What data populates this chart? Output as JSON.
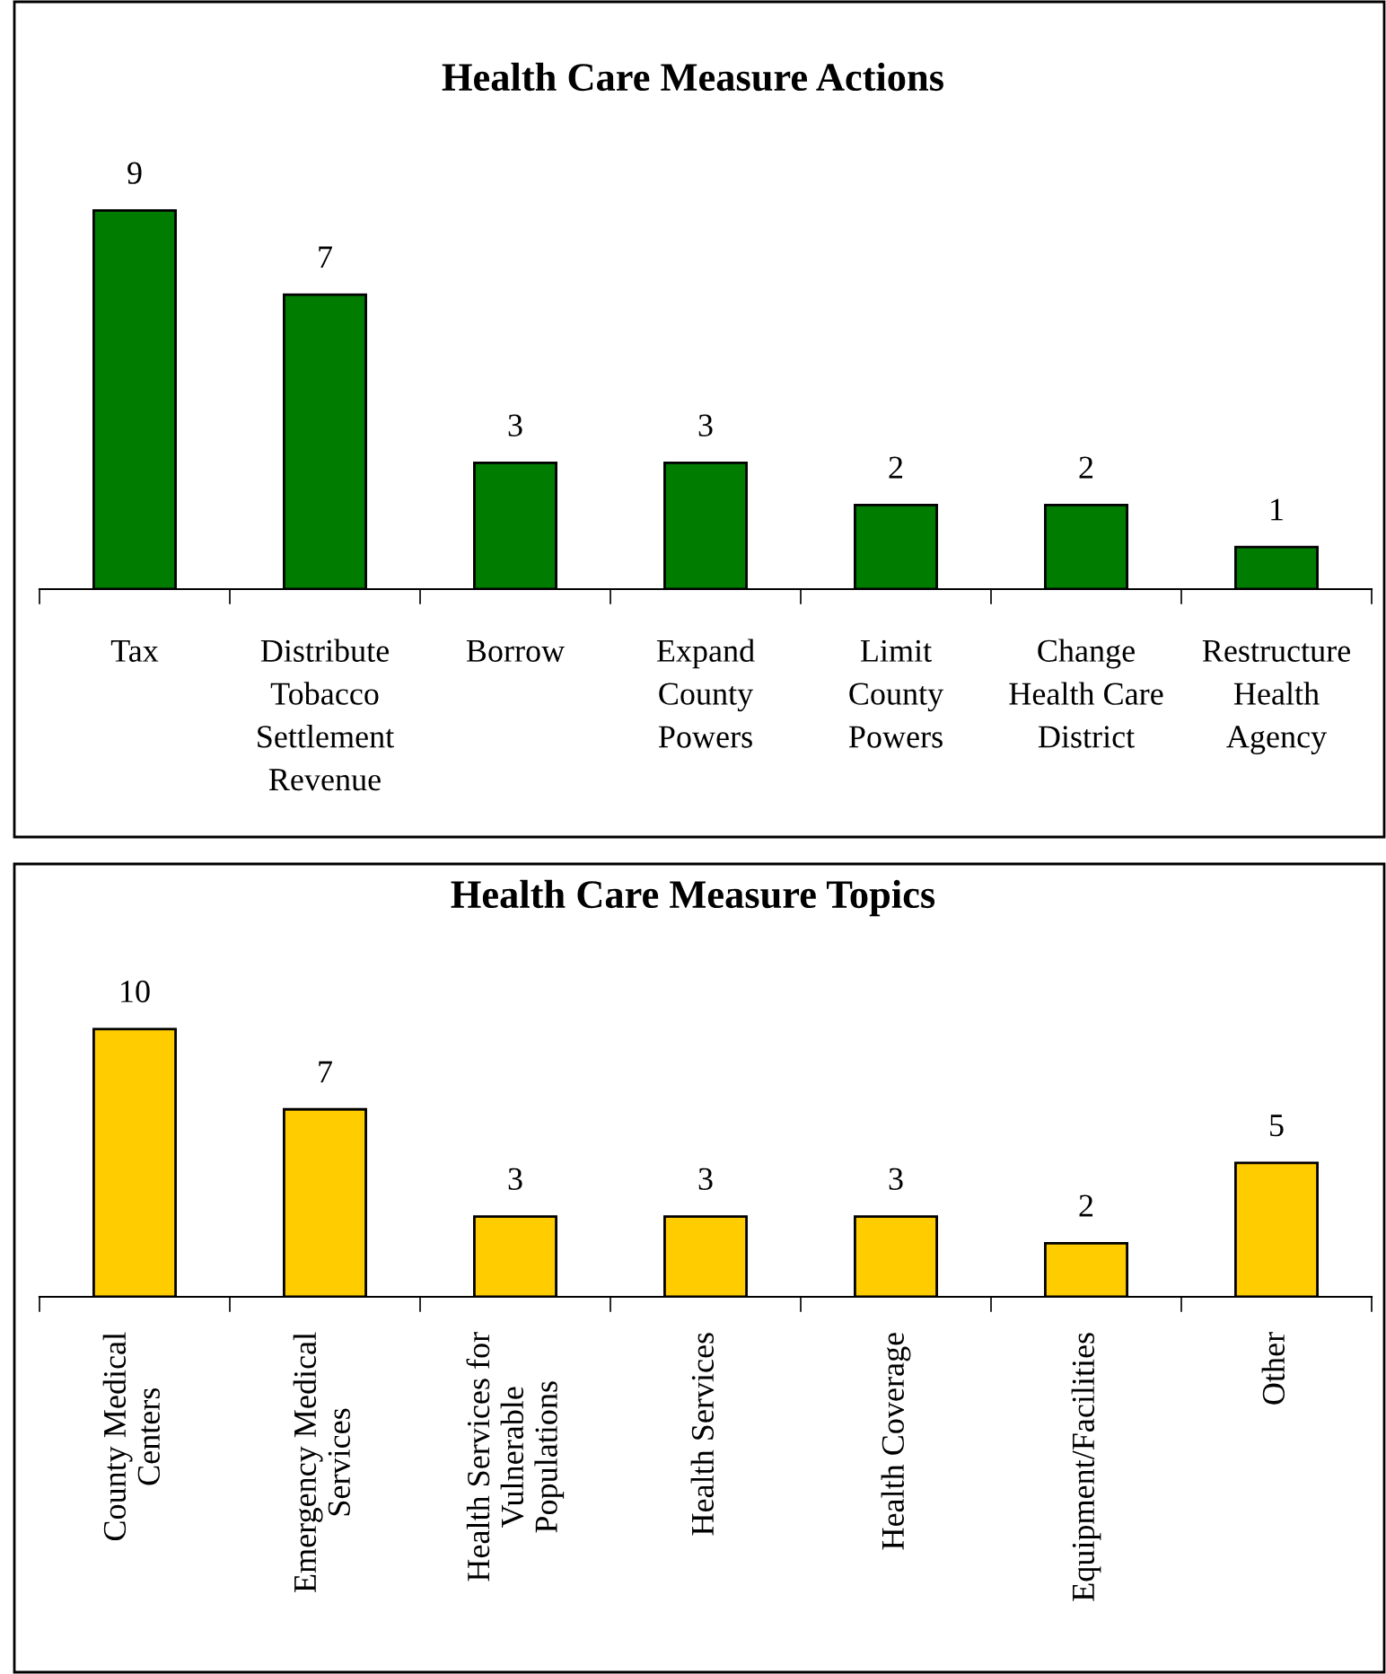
{
  "chart_data": [
    {
      "type": "bar",
      "title": "Health Care Measure Actions",
      "categories": [
        "Tax",
        "Distribute\nTobacco\nSettlement\nRevenue",
        "Borrow",
        "Expand\nCounty\nPowers",
        "Limit\nCounty\nPowers",
        "Change\nHealth Care\nDistrict",
        "Restructure\nHealth\nAgency"
      ],
      "values": [
        9,
        7,
        3,
        3,
        2,
        2,
        1
      ],
      "color": "#007c00",
      "data_labels": true,
      "legend": false,
      "grid": false
    },
    {
      "type": "bar",
      "title": "Health Care Measure Topics",
      "categories": [
        "County Medical\nCenters",
        "Emergency Medical\nServices",
        "Health Services for\nVulnerable\nPopulations",
        "Health Services",
        "Health Coverage",
        "Equipment/Facilities",
        "Other"
      ],
      "values": [
        10,
        7,
        3,
        3,
        3,
        2,
        5
      ],
      "color": "#ffcc00",
      "data_labels": true,
      "legend": false,
      "grid": false
    }
  ]
}
